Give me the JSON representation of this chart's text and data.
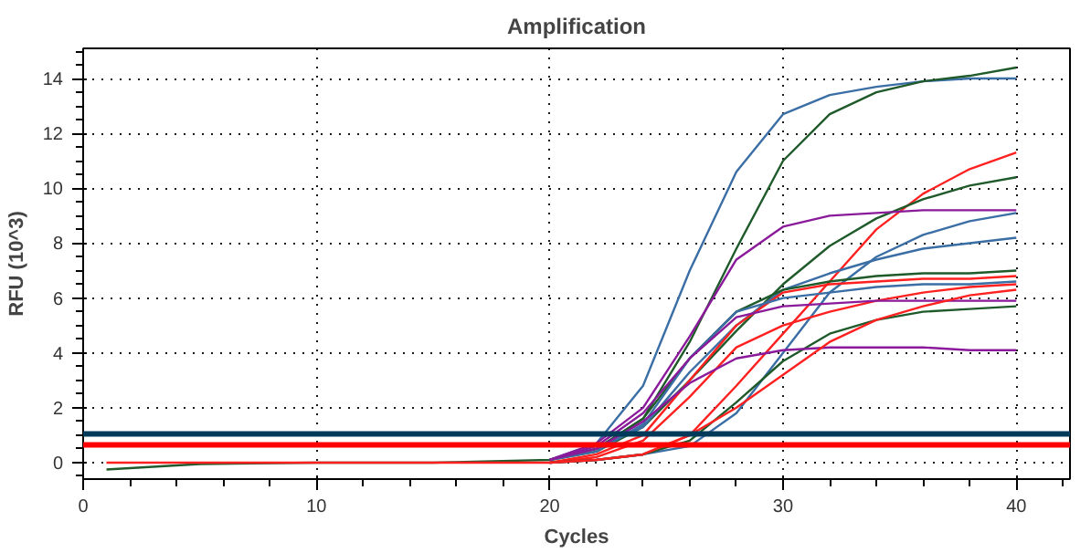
{
  "chart_data": {
    "type": "line",
    "title": "Amplification",
    "xlabel": "Cycles",
    "ylabel": "RFU (10^3)",
    "xlim": [
      0,
      42.3
    ],
    "ylim": [
      -0.6,
      15.1
    ],
    "xticks": [
      0,
      10,
      20,
      30,
      40
    ],
    "yticks": [
      0,
      2,
      4,
      6,
      8,
      10,
      12,
      14
    ],
    "grid": true,
    "marker": "none",
    "line_style": "solid",
    "x": [
      1,
      5,
      10,
      15,
      20,
      22,
      24,
      26,
      28,
      30,
      32,
      34,
      36,
      38,
      40
    ],
    "series": [
      {
        "color": "#3a6ea5",
        "values": [
          null,
          null,
          null,
          null,
          0.1,
          0.7,
          2.8,
          7.0,
          10.6,
          12.7,
          13.4,
          13.7,
          13.9,
          14.0,
          14.0
        ]
      },
      {
        "color": "#1f5a2a",
        "values": [
          -0.25,
          -0.05,
          0,
          0,
          0.1,
          0.5,
          1.6,
          4.4,
          7.8,
          11.0,
          12.7,
          13.5,
          13.9,
          14.1,
          14.4
        ]
      },
      {
        "color": "#ff2020",
        "values": [
          null,
          null,
          null,
          null,
          0,
          0.1,
          0.3,
          1.0,
          2.8,
          4.7,
          6.6,
          8.5,
          9.8,
          10.7,
          11.3
        ]
      },
      {
        "color": "#1f5a2a",
        "values": [
          null,
          null,
          null,
          null,
          0.1,
          0.4,
          1.3,
          3.0,
          4.8,
          6.5,
          7.9,
          8.9,
          9.6,
          10.1,
          10.4
        ]
      },
      {
        "color": "#8b1a9b",
        "values": [
          null,
          null,
          null,
          null,
          0.1,
          0.7,
          2.0,
          4.6,
          7.4,
          8.6,
          9.0,
          9.1,
          9.2,
          9.2,
          9.2
        ]
      },
      {
        "color": "#3a6ea5",
        "values": [
          null,
          null,
          null,
          null,
          0,
          0.1,
          0.3,
          0.6,
          1.8,
          4.0,
          6.2,
          7.5,
          8.3,
          8.8,
          9.1
        ]
      },
      {
        "color": "#3a6ea5",
        "values": [
          null,
          null,
          null,
          null,
          0.1,
          0.5,
          1.3,
          3.3,
          5.0,
          6.3,
          6.9,
          7.4,
          7.8,
          8.0,
          8.2
        ]
      },
      {
        "color": "#1f5a2a",
        "values": [
          null,
          null,
          null,
          null,
          0.1,
          0.5,
          1.6,
          3.8,
          5.5,
          6.3,
          6.6,
          6.8,
          6.9,
          6.9,
          7.0
        ]
      },
      {
        "color": "#ff2020",
        "values": [
          null,
          null,
          null,
          null,
          0,
          0.3,
          1.0,
          3.0,
          5.0,
          6.2,
          6.5,
          6.6,
          6.7,
          6.7,
          6.8
        ]
      },
      {
        "color": "#ff2020",
        "values": [
          null,
          null,
          null,
          null,
          0,
          0.2,
          0.8,
          2.4,
          4.2,
          5.0,
          5.5,
          5.9,
          6.2,
          6.4,
          6.5
        ]
      },
      {
        "color": "#3a6ea5",
        "values": [
          null,
          null,
          null,
          null,
          0.1,
          0.4,
          1.4,
          3.8,
          5.5,
          6.0,
          6.2,
          6.4,
          6.5,
          6.5,
          6.6
        ]
      },
      {
        "color": "#8b1a9b",
        "values": [
          null,
          null,
          null,
          null,
          0.1,
          0.6,
          1.8,
          3.8,
          5.3,
          5.7,
          5.8,
          5.9,
          5.9,
          5.9,
          5.9
        ]
      },
      {
        "color": "#1f5a2a",
        "values": [
          null,
          null,
          null,
          null,
          0,
          0.1,
          0.3,
          0.8,
          2.2,
          3.7,
          4.7,
          5.2,
          5.5,
          5.6,
          5.7
        ]
      },
      {
        "color": "#8b1a9b",
        "values": [
          null,
          null,
          null,
          null,
          0.1,
          0.5,
          1.5,
          2.9,
          3.8,
          4.1,
          4.2,
          4.2,
          4.2,
          4.1,
          4.1
        ]
      },
      {
        "color": "#ff2020",
        "values": [
          0,
          0,
          0,
          0,
          0,
          0.1,
          0.3,
          1.0,
          2.0,
          3.2,
          4.4,
          5.2,
          5.7,
          6.1,
          6.3
        ]
      }
    ],
    "ref_lines": [
      {
        "axis": "y",
        "value": 1.05,
        "color": "#003a5a"
      },
      {
        "axis": "y",
        "value": 0.65,
        "color": "#ff0000"
      }
    ]
  }
}
